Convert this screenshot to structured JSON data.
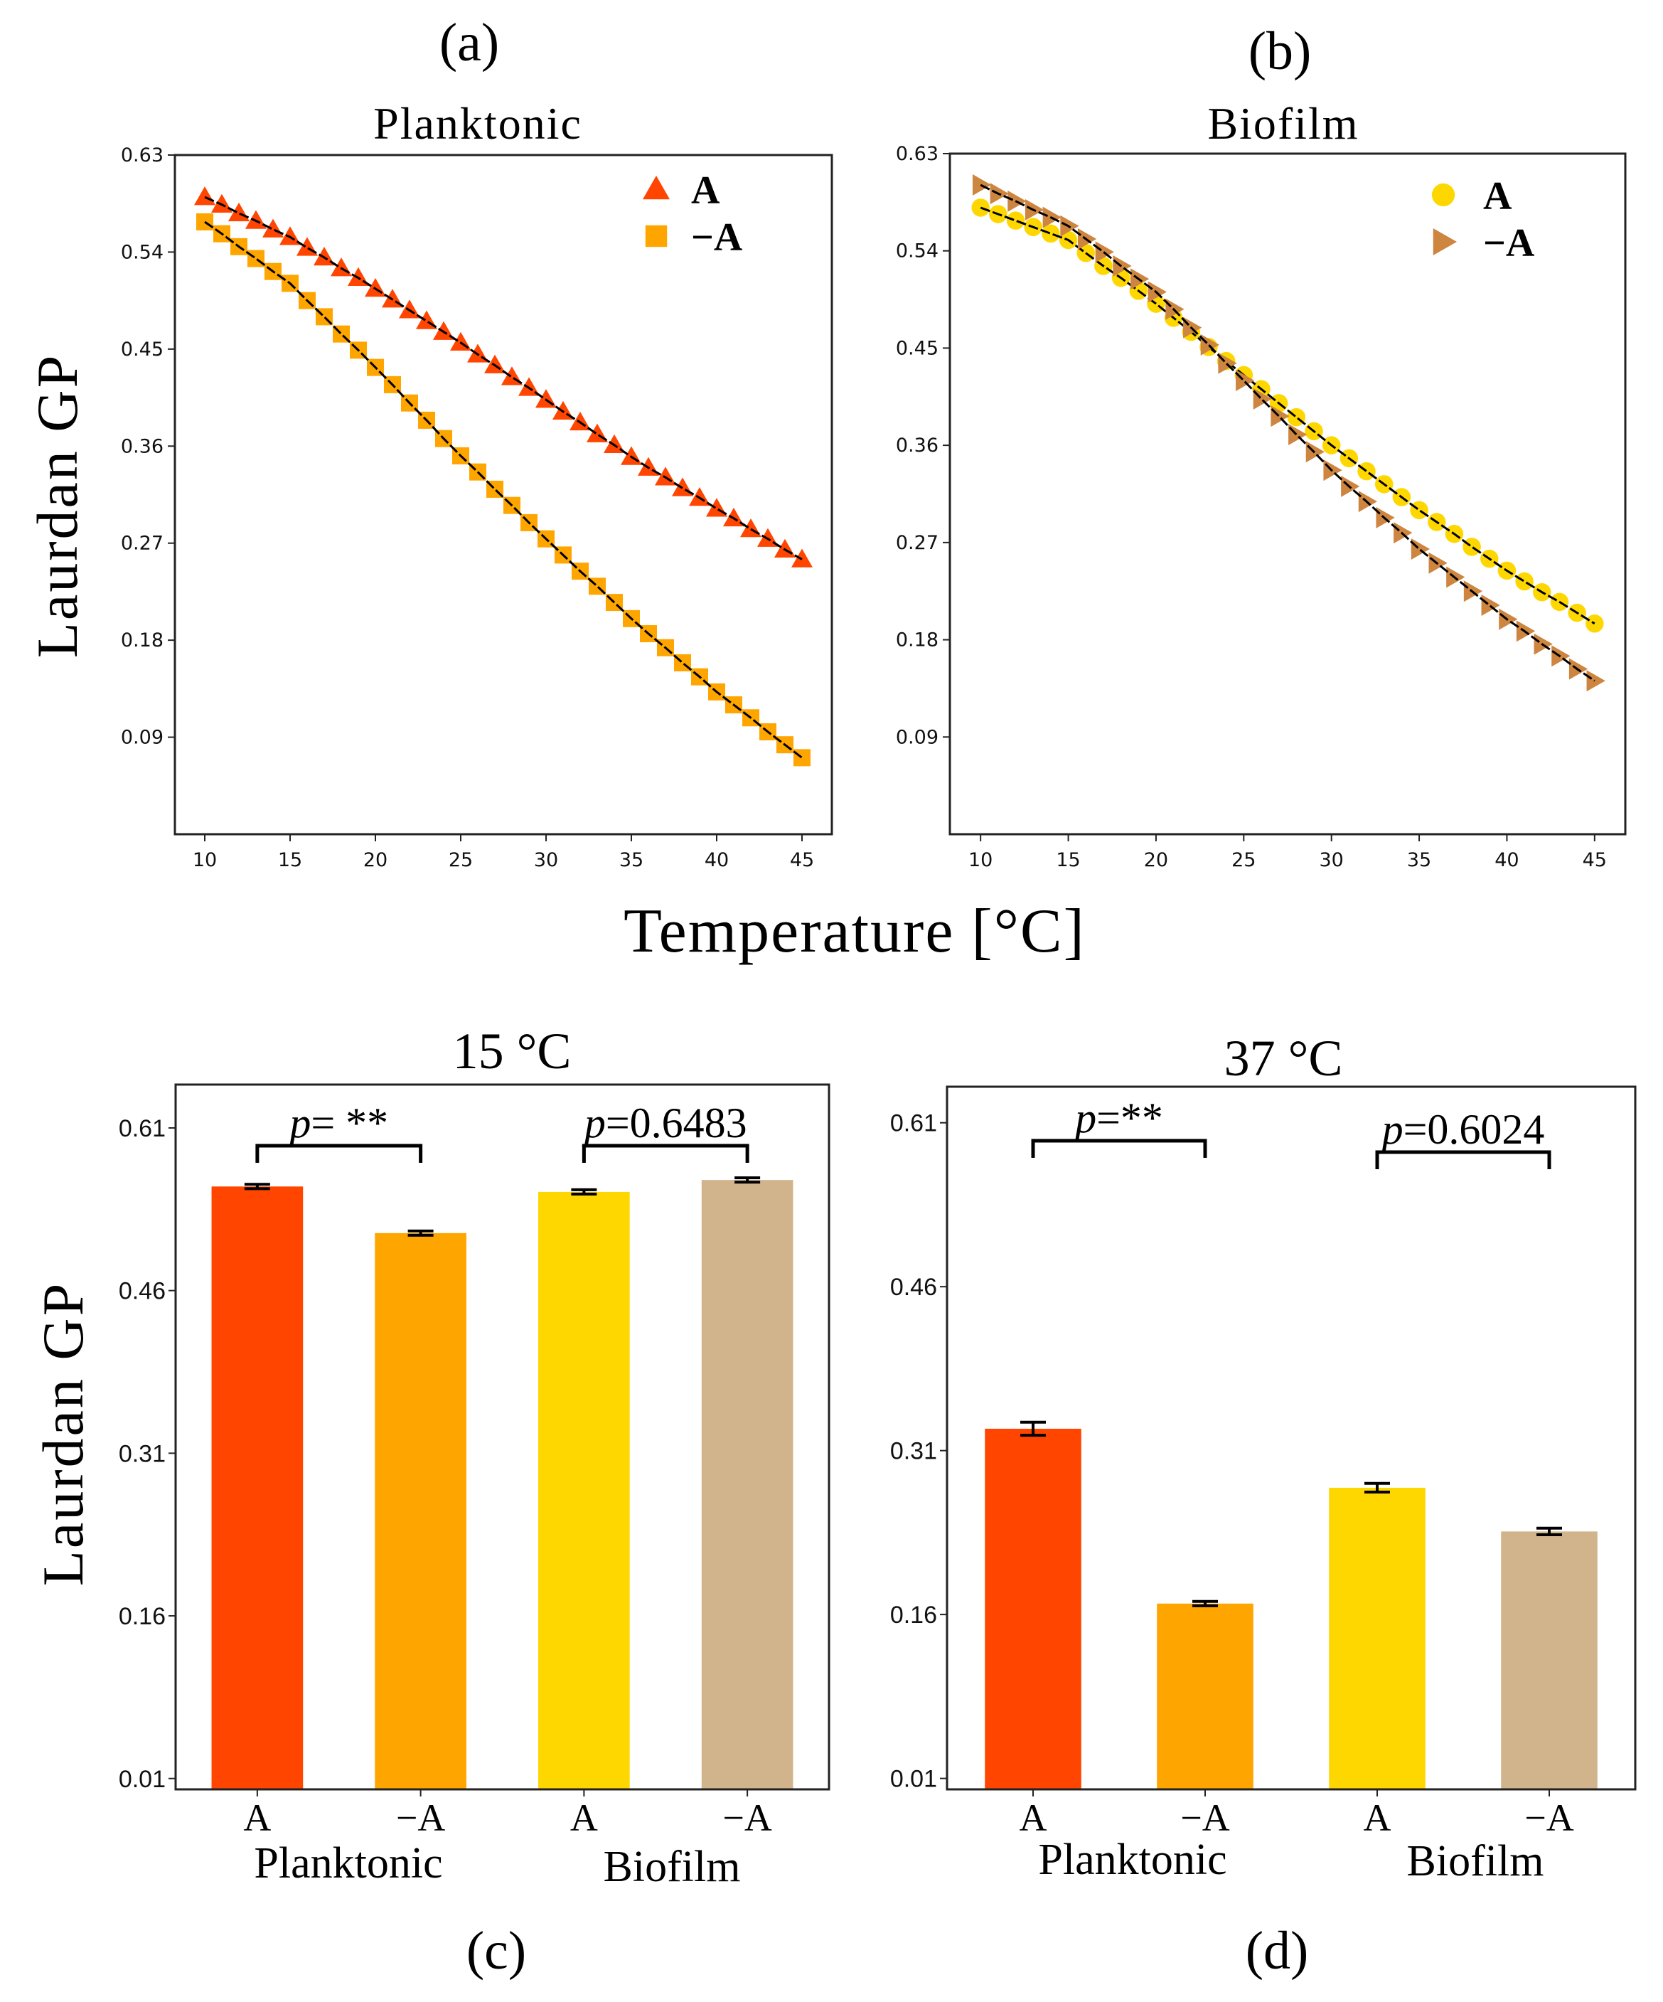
{
  "figure": {
    "panel_labels": [
      "(a)",
      "(b)",
      "(c)",
      "(d)"
    ],
    "ylabel": "Laurdan GP",
    "shared_xlabel": "Temperature [°C]"
  },
  "chart_data": [
    {
      "type": "line",
      "panel": "(a)",
      "title": "Planktonic",
      "xlabel": "Temperature [°C]",
      "ylabel": "Laurdan GP",
      "xlim": [
        8.25,
        46.75
      ],
      "ylim": [
        0,
        0.63
      ],
      "xticks": [
        10,
        15,
        20,
        25,
        30,
        35,
        40,
        45
      ],
      "yticks": [
        0.09,
        0.18,
        0.27,
        0.36,
        0.45,
        0.54,
        0.63
      ],
      "ytick_labels": [
        "0.09",
        "0.18",
        "0.27",
        "0.36",
        "0.45",
        "0.54",
        "0.63"
      ],
      "legend_position": "top-right",
      "x": [
        10,
        11,
        12,
        13,
        14,
        15,
        16,
        17,
        18,
        19,
        20,
        21,
        22,
        23,
        24,
        25,
        26,
        27,
        28,
        29,
        30,
        31,
        32,
        33,
        34,
        35,
        36,
        37,
        38,
        39,
        40,
        41,
        42,
        43,
        44,
        45
      ],
      "series": [
        {
          "name": "A",
          "marker": "triangle-up",
          "color": "#FF4500",
          "values": [
            0.591,
            0.584,
            0.576,
            0.569,
            0.561,
            0.554,
            0.544,
            0.535,
            0.525,
            0.516,
            0.506,
            0.496,
            0.486,
            0.476,
            0.466,
            0.456,
            0.445,
            0.435,
            0.424,
            0.414,
            0.403,
            0.392,
            0.382,
            0.371,
            0.361,
            0.35,
            0.34,
            0.331,
            0.321,
            0.312,
            0.302,
            0.293,
            0.283,
            0.274,
            0.264,
            0.255
          ]
        },
        {
          "name": "−A",
          "marker": "square",
          "color": "#FFA500",
          "values": [
            0.568,
            0.557,
            0.545,
            0.534,
            0.522,
            0.511,
            0.495,
            0.48,
            0.464,
            0.449,
            0.433,
            0.417,
            0.4,
            0.384,
            0.367,
            0.351,
            0.336,
            0.32,
            0.305,
            0.289,
            0.274,
            0.259,
            0.244,
            0.23,
            0.215,
            0.2,
            0.186,
            0.173,
            0.159,
            0.146,
            0.132,
            0.12,
            0.108,
            0.095,
            0.083,
            0.071
          ]
        }
      ]
    },
    {
      "type": "line",
      "panel": "(b)",
      "title": "Biofilm",
      "xlabel": "Temperature [°C]",
      "ylabel": "Laurdan GP",
      "xlim": [
        8.25,
        46.75
      ],
      "ylim": [
        0,
        0.63
      ],
      "xticks": [
        10,
        15,
        20,
        25,
        30,
        35,
        40,
        45
      ],
      "yticks": [
        0.09,
        0.18,
        0.27,
        0.36,
        0.45,
        0.54,
        0.63
      ],
      "ytick_labels": [
        "0.09",
        "0.18",
        "0.27",
        "0.36",
        "0.45",
        "0.54",
        "0.63"
      ],
      "legend_position": "top-right",
      "x": [
        10,
        11,
        12,
        13,
        14,
        15,
        16,
        17,
        18,
        19,
        20,
        21,
        22,
        23,
        24,
        25,
        26,
        27,
        28,
        29,
        30,
        31,
        32,
        33,
        34,
        35,
        36,
        37,
        38,
        39,
        40,
        41,
        42,
        43,
        44,
        45
      ],
      "series": [
        {
          "name": "A",
          "marker": "circle",
          "color": "#FFD700",
          "values": [
            0.58,
            0.574,
            0.568,
            0.562,
            0.556,
            0.55,
            0.538,
            0.526,
            0.515,
            0.503,
            0.491,
            0.478,
            0.465,
            0.451,
            0.438,
            0.425,
            0.412,
            0.399,
            0.386,
            0.373,
            0.36,
            0.348,
            0.336,
            0.324,
            0.312,
            0.3,
            0.289,
            0.278,
            0.266,
            0.255,
            0.244,
            0.234,
            0.224,
            0.215,
            0.205,
            0.195
          ]
        },
        {
          "name": "−A",
          "marker": "triangle-right",
          "color": "#CD853F",
          "values": [
            0.601,
            0.593,
            0.586,
            0.578,
            0.571,
            0.563,
            0.551,
            0.539,
            0.526,
            0.514,
            0.502,
            0.486,
            0.469,
            0.453,
            0.436,
            0.42,
            0.403,
            0.387,
            0.37,
            0.354,
            0.337,
            0.322,
            0.308,
            0.293,
            0.279,
            0.264,
            0.251,
            0.238,
            0.225,
            0.212,
            0.199,
            0.188,
            0.176,
            0.165,
            0.153,
            0.142
          ]
        }
      ]
    },
    {
      "type": "bar",
      "panel": "(c)",
      "title": "15 °C",
      "ylabel": "Laurdan GP",
      "ylim": [
        0,
        0.65
      ],
      "yticks": [
        0.01,
        0.16,
        0.31,
        0.46,
        0.61
      ],
      "ytick_labels": [
        "0.01",
        "0.16",
        "0.31",
        "0.46",
        "0.61"
      ],
      "categories": [
        "A",
        "−A",
        "A",
        "−A"
      ],
      "groups": [
        "Planktonic",
        "Biofilm"
      ],
      "values": [
        0.556,
        0.513,
        0.551,
        0.562
      ],
      "errors": [
        0.002,
        0.002,
        0.002,
        0.002
      ],
      "colors": [
        "#FF4500",
        "#FFA500",
        "#FFD700",
        "#D2B48C"
      ],
      "annotations": [
        {
          "pair": [
            0,
            1
          ],
          "text_p": "p",
          "text_rest": "= **"
        },
        {
          "pair": [
            2,
            3
          ],
          "text_p": "p",
          "text_rest": "=0.6483"
        }
      ]
    },
    {
      "type": "bar",
      "panel": "(d)",
      "title": "37 °C",
      "ylabel": "",
      "ylim": [
        0,
        0.643
      ],
      "yticks": [
        0.01,
        0.16,
        0.31,
        0.46,
        0.61
      ],
      "ytick_labels": [
        "0.01",
        "0.16",
        "0.31",
        "0.46",
        "0.61"
      ],
      "categories": [
        "A",
        "−A",
        "A",
        "−A"
      ],
      "groups": [
        "Planktonic",
        "Biofilm"
      ],
      "values": [
        0.33,
        0.17,
        0.276,
        0.236
      ],
      "errors": [
        0.006,
        0.002,
        0.004,
        0.003
      ],
      "colors": [
        "#FF4500",
        "#FFA500",
        "#FFD700",
        "#D2B48C"
      ],
      "annotations": [
        {
          "pair": [
            0,
            1
          ],
          "text_p": "p",
          "text_rest": "=**"
        },
        {
          "pair": [
            2,
            3
          ],
          "text_p": "p",
          "text_rest": "=0.6024"
        }
      ]
    }
  ]
}
